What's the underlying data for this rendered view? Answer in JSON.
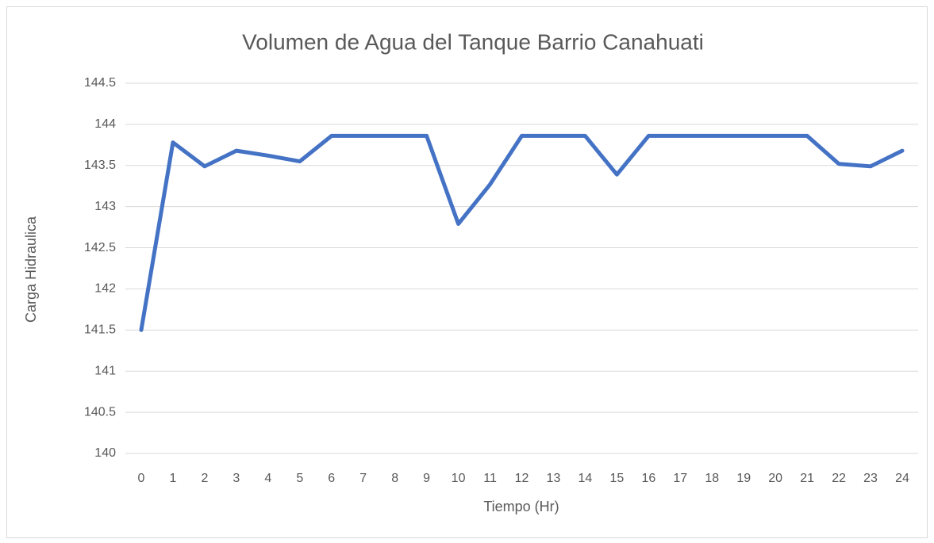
{
  "chart_data": {
    "type": "line",
    "title": "Volumen de Agua del Tanque Barrio Canahuati",
    "x_label": "Tiempo (Hr)",
    "y_label": "Carga Hidraulica",
    "categories": [
      "0",
      "1",
      "2",
      "3",
      "4",
      "5",
      "6",
      "7",
      "8",
      "9",
      "10",
      "11",
      "12",
      "13",
      "14",
      "15",
      "16",
      "17",
      "18",
      "19",
      "20",
      "21",
      "22",
      "23",
      "24"
    ],
    "series": [
      {
        "color": "#4472c4",
        "values": [
          141.5,
          143.78,
          143.49,
          143.68,
          143.62,
          143.55,
          143.86,
          143.86,
          143.86,
          143.86,
          142.79,
          143.27,
          143.86,
          143.86,
          143.86,
          143.39,
          143.86,
          143.86,
          143.86,
          143.86,
          143.86,
          143.86,
          143.52,
          143.49,
          143.68
        ]
      }
    ],
    "ylim": [
      140,
      144.5
    ],
    "yticks": [
      140,
      140.5,
      141,
      141.5,
      142,
      142.5,
      143,
      143.5,
      144,
      144.5
    ],
    "grid": true
  }
}
